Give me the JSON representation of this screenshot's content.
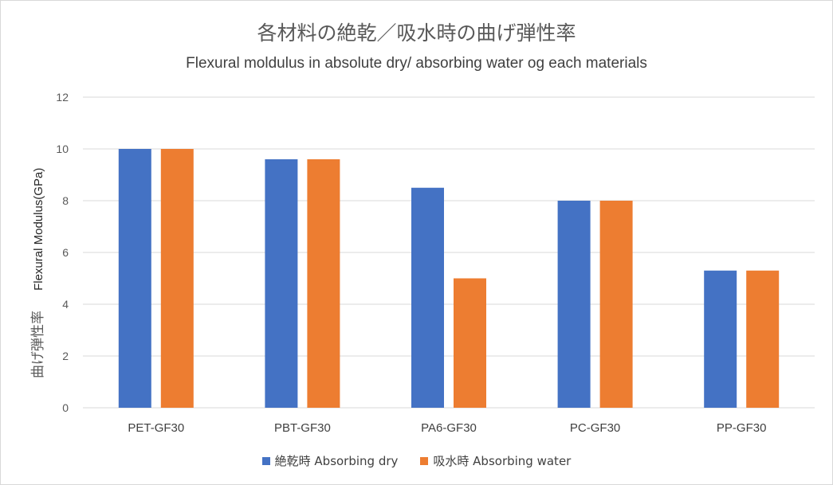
{
  "chart_data": {
    "type": "bar",
    "title": "各材料の絶乾／吸水時の曲げ弾性率",
    "subtitle": "Flexural moldulus in absolute dry/ absorbing water og each materials",
    "ylabel_jp": "曲げ弾性率",
    "ylabel_en": "Flexural Modulus(GPa)",
    "xlabel": "",
    "categories": [
      "PET-GF30",
      "PBT-GF30",
      "PA6-GF30",
      "PC-GF30",
      "PP-GF30"
    ],
    "series": [
      {
        "name": "絶乾時 Absorbing dry",
        "color": "#4472c4",
        "values": [
          10,
          9.6,
          8.5,
          8,
          5.3
        ]
      },
      {
        "name": "吸水時 Absorbing water",
        "color": "#ed7d31",
        "values": [
          10,
          9.6,
          5,
          8,
          5.3
        ]
      }
    ],
    "ylim": [
      0,
      12
    ],
    "yticks": [
      "0",
      "2",
      "4",
      "6",
      "8",
      "10",
      "12"
    ],
    "grid": true,
    "legend_position": "bottom"
  }
}
